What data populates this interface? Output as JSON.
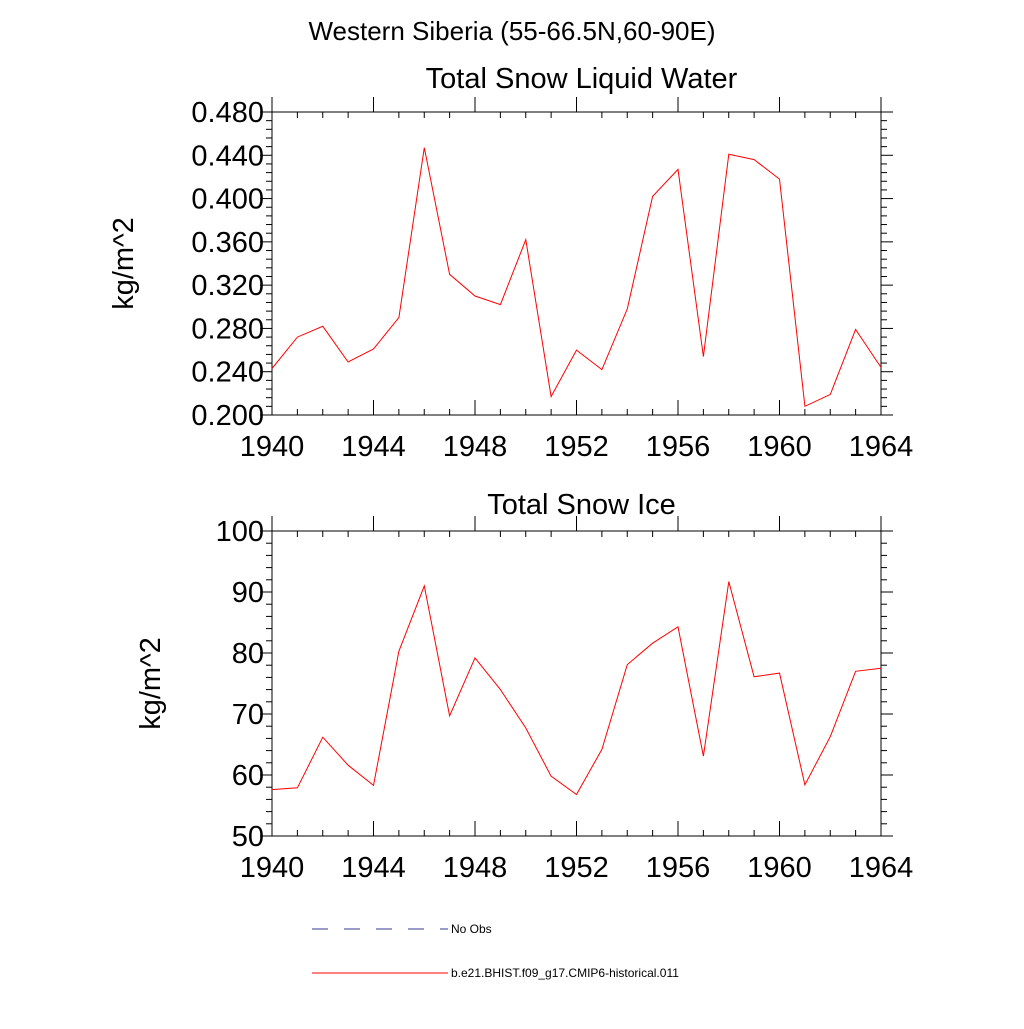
{
  "figure": {
    "suptitle": "Western Siberia (55-66.5N,60-90E)"
  },
  "chart_data": [
    {
      "type": "line",
      "title": "Total Snow Liquid Water",
      "xlabel": "",
      "ylabel": "kg/m^2",
      "xlim": [
        1940,
        1964
      ],
      "ylim": [
        0.2,
        0.48
      ],
      "x_ticks": [
        1940,
        1944,
        1948,
        1952,
        1956,
        1960,
        1964
      ],
      "y_ticks": [
        "0.200",
        "0.240",
        "0.280",
        "0.320",
        "0.360",
        "0.400",
        "0.440",
        "0.480"
      ],
      "grid": false,
      "series": [
        {
          "name": "b.e21.BHIST.f09_g17.CMIP6-historical.011",
          "color": "#ff0000",
          "x": [
            1940,
            1941,
            1942,
            1943,
            1944,
            1945,
            1946,
            1947,
            1948,
            1949,
            1950,
            1951,
            1952,
            1953,
            1954,
            1955,
            1956,
            1957,
            1958,
            1959,
            1960,
            1961,
            1962,
            1963,
            1964
          ],
          "y": [
            0.243,
            0.272,
            0.282,
            0.249,
            0.261,
            0.29,
            0.447,
            0.33,
            0.31,
            0.302,
            0.362,
            0.217,
            0.26,
            0.242,
            0.298,
            0.402,
            0.427,
            0.254,
            0.441,
            0.436,
            0.418,
            0.208,
            0.219,
            0.279,
            0.244
          ]
        }
      ]
    },
    {
      "type": "line",
      "title": "Total Snow Ice",
      "xlabel": "",
      "ylabel": "kg/m^2",
      "xlim": [
        1940,
        1964
      ],
      "ylim": [
        50,
        100
      ],
      "x_ticks": [
        1940,
        1944,
        1948,
        1952,
        1956,
        1960,
        1964
      ],
      "y_ticks": [
        "50",
        "60",
        "70",
        "80",
        "90",
        "100"
      ],
      "grid": false,
      "series": [
        {
          "name": "b.e21.BHIST.f09_g17.CMIP6-historical.011",
          "color": "#ff0000",
          "x": [
            1940,
            1941,
            1942,
            1943,
            1944,
            1945,
            1946,
            1947,
            1948,
            1949,
            1950,
            1951,
            1952,
            1953,
            1954,
            1955,
            1956,
            1957,
            1958,
            1959,
            1960,
            1961,
            1962,
            1963,
            1964
          ],
          "y": [
            57.6,
            57.9,
            66.2,
            61.6,
            58.3,
            80.3,
            91.0,
            69.7,
            79.2,
            74.0,
            67.7,
            59.8,
            56.8,
            64.2,
            78.1,
            81.6,
            84.3,
            63.1,
            91.7,
            76.1,
            76.7,
            58.4,
            66.3,
            77.0,
            77.5
          ]
        }
      ]
    }
  ],
  "legend": {
    "placement": "bottom",
    "items": [
      {
        "label": "No Obs",
        "color": "#3a3a8c",
        "dash": "dashed"
      },
      {
        "label": "b.e21.BHIST.f09_g17.CMIP6-historical.011",
        "color": "#ff0000",
        "dash": "solid"
      }
    ]
  }
}
